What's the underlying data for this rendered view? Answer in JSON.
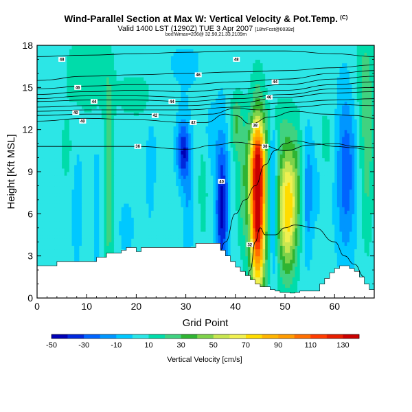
{
  "title": "Wind-Parallel Section at Max W: Vertical Velocity & Pot.Temp.",
  "title_mark": "(C)",
  "subtitle_main": "Valid 1400 LST (1290Z) TUE 3 Apr 2007",
  "subtitle_small": "[18hrFcst@0039z]",
  "subtitle2": "box!Wmax=206@ 32.90,21.33,2109m",
  "chart_data": {
    "type": "heatmap",
    "title": "Wind-Parallel Section at Max W: Vertical Velocity & Pot.Temp.",
    "xlabel": "Grid Point",
    "ylabel": "Height [Kft MSL]",
    "xlim": [
      0,
      68
    ],
    "ylim": [
      0,
      18
    ],
    "xticks": [
      0,
      10,
      20,
      30,
      40,
      50,
      60
    ],
    "yticks": [
      0,
      3,
      6,
      9,
      12,
      15,
      18
    ],
    "colorbar": {
      "label": "Vertical Velocity [cm/s]",
      "tick_labels": [
        "-50",
        "-30",
        "-10",
        "10",
        "30",
        "50",
        "70",
        "90",
        "110",
        "130"
      ],
      "levels": [
        -50,
        -40,
        -30,
        -20,
        -10,
        0,
        10,
        20,
        30,
        40,
        50,
        60,
        70,
        80,
        90,
        100,
        110,
        120,
        130,
        140
      ],
      "colors": [
        "#0000b4",
        "#0028dc",
        "#0064ff",
        "#0096ff",
        "#00c8ff",
        "#2ce6e6",
        "#00dcaa",
        "#40d280",
        "#2fb432",
        "#7ed24a",
        "#c8e650",
        "#f0f050",
        "#ffdc00",
        "#ffb400",
        "#ff9b00",
        "#ff6e00",
        "#ff3c00",
        "#e61e00",
        "#c80000"
      ]
    },
    "terrain_profile": {
      "x": [
        0,
        4,
        12,
        14,
        17,
        18,
        20,
        21,
        22,
        29,
        32,
        35,
        37,
        38,
        39,
        40,
        41,
        42,
        43,
        44,
        45,
        46,
        47,
        48,
        49,
        50,
        51,
        52,
        53,
        54,
        55,
        56,
        57,
        58,
        59,
        60,
        61,
        62,
        63,
        64,
        65,
        66,
        67,
        68
      ],
      "height_kft": [
        2.3,
        2.6,
        2.9,
        3.2,
        3.4,
        3.6,
        3.3,
        3.6,
        3.6,
        3.6,
        3.9,
        3.9,
        3.4,
        3.0,
        2.6,
        2.2,
        1.9,
        1.6,
        1.3,
        1.0,
        0.8,
        0.8,
        0.6,
        0.5,
        0.4,
        0.4,
        0.35,
        0.4,
        0.5,
        0.5,
        0.5,
        0.5,
        1.0,
        1.4,
        1.8,
        2.1,
        2.3,
        2.3,
        2.1,
        1.9,
        1.5,
        1.0,
        0.6,
        0.3
      ]
    },
    "theta_contours": [
      {
        "label": "36",
        "x": [
          0,
          10,
          20,
          30,
          36,
          40,
          45,
          50,
          55,
          60,
          64,
          68
        ],
        "y": [
          10.8,
          10.8,
          10.8,
          10.6,
          10.9,
          11.1,
          10.9,
          10.5,
          10.9,
          11.0,
          10.8,
          10.7
        ]
      },
      {
        "label": "40",
        "x": [
          0,
          10,
          20,
          30,
          34,
          38,
          40,
          43,
          47,
          52,
          58,
          64,
          68
        ],
        "y": [
          12.6,
          12.8,
          12.7,
          12.5,
          12.5,
          13.1,
          13.0,
          12.4,
          12.9,
          13.3,
          13.1,
          13.0,
          12.8
        ]
      },
      {
        "label": "42",
        "x": [
          0,
          10,
          20,
          30,
          35,
          40,
          45,
          52,
          60,
          68
        ],
        "y": [
          13.0,
          13.1,
          13.1,
          13.0,
          13.1,
          13.5,
          13.4,
          13.6,
          13.8,
          13.7
        ]
      },
      {
        "label": "",
        "x": [
          0,
          10,
          20,
          30,
          40,
          50,
          60,
          68
        ],
        "y": [
          13.3,
          13.4,
          13.4,
          13.4,
          13.6,
          13.9,
          14.1,
          14.2
        ]
      },
      {
        "label": "",
        "x": [
          0,
          10,
          20,
          30,
          40,
          50,
          60,
          68
        ],
        "y": [
          13.6,
          13.7,
          13.7,
          13.7,
          13.9,
          14.3,
          14.6,
          14.7
        ]
      },
      {
        "label": "46",
        "x": [
          0,
          10,
          20,
          30,
          40,
          50,
          60,
          68
        ],
        "y": [
          14.0,
          14.1,
          14.1,
          14.0,
          14.2,
          14.5,
          14.9,
          15.0
        ]
      },
      {
        "label": "",
        "x": [
          0,
          10,
          20,
          30,
          40,
          50,
          60,
          68
        ],
        "y": [
          14.2,
          14.4,
          14.4,
          14.3,
          14.5,
          14.8,
          15.2,
          15.4
        ]
      },
      {
        "label": "44",
        "x": [
          0,
          10,
          20,
          30,
          40,
          50,
          60,
          68
        ],
        "y": [
          14.5,
          14.7,
          14.8,
          14.7,
          14.9,
          15.2,
          15.6,
          15.8
        ]
      },
      {
        "label": "",
        "x": [
          0,
          10,
          20,
          30,
          40,
          50,
          60,
          68
        ],
        "y": [
          14.9,
          15.1,
          15.2,
          15.2,
          15.4,
          15.6,
          16.0,
          16.2
        ]
      },
      {
        "label": "46",
        "x": [
          0,
          10,
          20,
          30,
          40,
          50,
          60,
          68
        ],
        "y": [
          15.5,
          15.8,
          15.9,
          16.0,
          16.1,
          16.2,
          16.4,
          16.6
        ]
      },
      {
        "label": "48",
        "x": [
          0,
          10,
          20,
          30,
          40,
          50,
          60,
          68
        ],
        "y": [
          17.2,
          17.3,
          17.4,
          17.5,
          17.6,
          17.6,
          17.4,
          17.2
        ]
      }
    ],
    "contour_labels": [
      "48",
      "48",
      "46",
      "46",
      "44",
      "44",
      "44",
      "46",
      "40",
      "42",
      "40",
      "42",
      "38",
      "36",
      "38",
      "40",
      "32"
    ],
    "lowlevel_contours": [
      {
        "label": "38",
        "x": [
          34,
          36,
          38,
          40,
          42,
          44,
          46,
          48,
          50,
          52,
          56,
          60,
          64,
          66
        ],
        "y": [
          1.6,
          2.2,
          4.0,
          6.0,
          7.0,
          8.0,
          9.5,
          10.5,
          11.0,
          11.2,
          11.0,
          10.8,
          10.7,
          10.6
        ]
      },
      {
        "label": "32",
        "x": [
          42,
          43,
          44,
          45,
          46,
          48,
          50,
          52,
          56,
          60,
          62,
          64,
          66
        ],
        "y": [
          1.0,
          2.0,
          4.0,
          5.0,
          4.5,
          4.5,
          5.0,
          5.2,
          5.0,
          4.0,
          3.0,
          2.4,
          1.5
        ]
      }
    ]
  }
}
